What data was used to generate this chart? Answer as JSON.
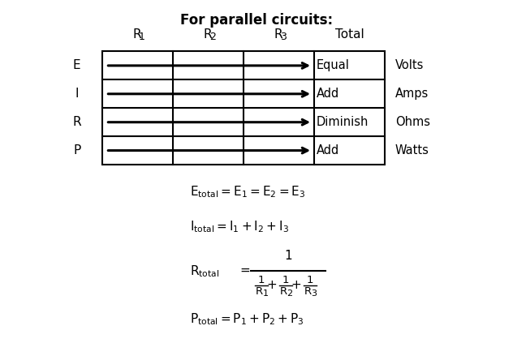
{
  "title": "For parallel circuits:",
  "col_headers": [
    "R",
    "R",
    "R",
    "Total"
  ],
  "col_subs": [
    "1",
    "2",
    "3",
    ""
  ],
  "row_headers": [
    "E",
    "I",
    "R",
    "P"
  ],
  "row_labels": [
    "Equal",
    "Add",
    "Diminish",
    "Add"
  ],
  "row_units": [
    "Volts",
    "Amps",
    "Ohms",
    "Watts"
  ],
  "bg_color": "#ffffff",
  "text_color": "#000000",
  "title_fontsize": 12,
  "header_fontsize": 11,
  "cell_fontsize": 10.5,
  "formula_fontsize": 11
}
